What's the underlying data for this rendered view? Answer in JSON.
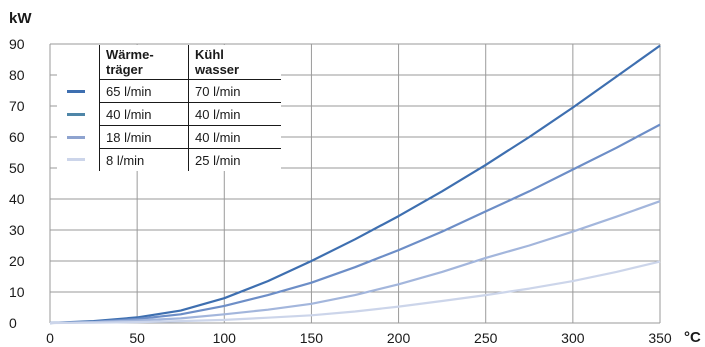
{
  "chart_data": {
    "type": "line",
    "ylabel": "kW",
    "xlabel": "°C",
    "xlim": [
      0,
      350
    ],
    "ylim": [
      0,
      90
    ],
    "x_ticks": [
      0,
      50,
      100,
      150,
      200,
      250,
      300,
      350
    ],
    "y_ticks": [
      0,
      10,
      20,
      30,
      40,
      50,
      60,
      70,
      80,
      90
    ],
    "grid": true,
    "legend": {
      "placement": "top-left",
      "headers": [
        "Wärme-\nträger",
        "Kühl\nwasser"
      ],
      "rows": [
        {
          "col1": "65 l/min",
          "col2": "70 l/min"
        },
        {
          "col1": "40 l/min",
          "col2": "40 l/min"
        },
        {
          "col1": "18 l/min",
          "col2": "40 l/min"
        },
        {
          "col1": "8 l/min",
          "col2": "25 l/min"
        }
      ]
    },
    "series": [
      {
        "color": "#3e6fb0",
        "x": [
          0,
          25,
          50,
          75,
          100,
          125,
          150,
          175,
          200,
          225,
          250,
          275,
          300,
          325,
          350
        ],
        "y": [
          0,
          0.6,
          1.8,
          4,
          8,
          13.5,
          20,
          27,
          34.5,
          42.5,
          51,
          60,
          69.5,
          79.5,
          89.5
        ]
      },
      {
        "color": "#6d8ec7",
        "x": [
          0,
          25,
          50,
          75,
          100,
          125,
          150,
          175,
          200,
          225,
          250,
          275,
          300,
          325,
          350
        ],
        "y": [
          0,
          0.4,
          1.3,
          2.8,
          5.5,
          9,
          13,
          18,
          23.5,
          29.5,
          36,
          42.5,
          49.5,
          56.5,
          64
        ]
      },
      {
        "color": "#a3b6dc",
        "x": [
          0,
          25,
          50,
          75,
          100,
          125,
          150,
          175,
          200,
          225,
          250,
          275,
          300,
          325,
          350
        ],
        "y": [
          0,
          0.3,
          0.8,
          1.5,
          2.8,
          4.3,
          6.2,
          9,
          12.5,
          16.5,
          21,
          25,
          29.5,
          34.3,
          39.3
        ]
      },
      {
        "color": "#ccd5ea",
        "x": [
          0,
          25,
          50,
          75,
          100,
          125,
          150,
          175,
          200,
          225,
          250,
          275,
          300,
          325,
          350
        ],
        "y": [
          0,
          0.1,
          0.3,
          0.6,
          1,
          1.7,
          2.5,
          3.7,
          5.3,
          7.1,
          9,
          11.1,
          13.5,
          16.5,
          19.8
        ]
      }
    ]
  }
}
